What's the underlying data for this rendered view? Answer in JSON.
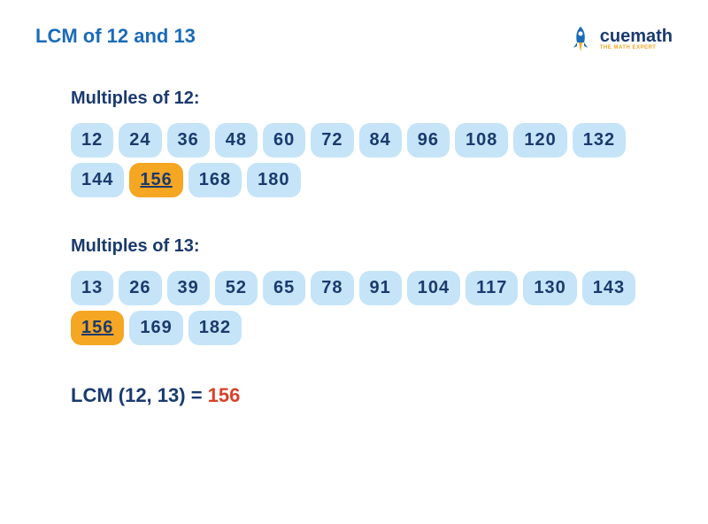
{
  "title": "LCM of 12 and 13",
  "title_color": "#1a6bb8",
  "logo": {
    "main": "cuemath",
    "sub": "THE MATH EXPERT",
    "rocket_body": "#1a6bb8",
    "rocket_flame": "#f5a623"
  },
  "sections": [
    {
      "label": "Multiples of 12:",
      "label_color": "#1a3a6e",
      "values": [
        12,
        24,
        36,
        48,
        60,
        72,
        84,
        96,
        108,
        120,
        132,
        144,
        156,
        168,
        180
      ],
      "highlight_value": 156
    },
    {
      "label": "Multiples of 13:",
      "label_color": "#1a3a6e",
      "values": [
        13,
        26,
        39,
        52,
        65,
        78,
        91,
        104,
        117,
        130,
        143,
        156,
        169,
        182
      ],
      "highlight_value": 156
    }
  ],
  "chip_style": {
    "normal_bg": "#c5e4f8",
    "normal_text": "#1a3a6e",
    "highlight_bg": "#f5a623",
    "highlight_text": "#1a3a6e"
  },
  "result": {
    "label": "LCM (12, 13) = ",
    "label_color": "#1a3a6e",
    "value": "156",
    "value_color": "#d9412b"
  }
}
